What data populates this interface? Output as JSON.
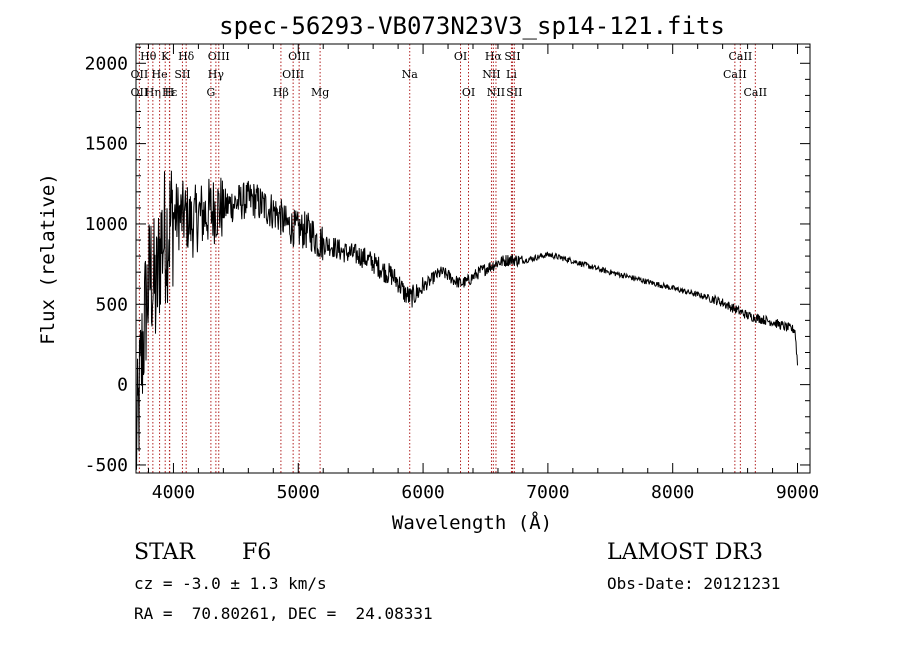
{
  "chart_data": {
    "type": "line",
    "title": "spec-56293-VB073N23V3_sp14-121.fits",
    "xlabel": "Wavelength (Å)",
    "ylabel": "Flux (relative)",
    "xlim": [
      3700,
      9100
    ],
    "ylim": [
      -550,
      2120
    ],
    "xticks": [
      4000,
      5000,
      6000,
      7000,
      8000,
      9000
    ],
    "yticks": [
      -500,
      0,
      500,
      1000,
      1500,
      2000
    ],
    "x_tick_labels": [
      "4000",
      "5000",
      "6000",
      "7000",
      "8000",
      "9000"
    ],
    "y_tick_labels": [
      "-500",
      "0",
      "500",
      "1000",
      "1500",
      "2000"
    ],
    "series": [
      {
        "name": "spectrum",
        "x": [
          3700,
          3740,
          3780,
          3820,
          3860,
          3900,
          3950,
          4000,
          4050,
          4100,
          4150,
          4200,
          4250,
          4300,
          4350,
          4400,
          4450,
          4500,
          4550,
          4600,
          4650,
          4700,
          4750,
          4800,
          4850,
          4900,
          4950,
          5000,
          5050,
          5100,
          5150,
          5200,
          5250,
          5300,
          5350,
          5400,
          5450,
          5500,
          5550,
          5600,
          5650,
          5700,
          5750,
          5800,
          5850,
          5900,
          5950,
          6000,
          6050,
          6100,
          6150,
          6200,
          6250,
          6300,
          6350,
          6400,
          6450,
          6500,
          6550,
          6600,
          6650,
          6700,
          6750,
          6800,
          6850,
          6900,
          6950,
          7000,
          7050,
          7100,
          7150,
          7200,
          7300,
          7400,
          7500,
          7600,
          7700,
          7800,
          7900,
          8000,
          8100,
          8200,
          8300,
          8400,
          8500,
          8600,
          8700,
          8800,
          8900,
          8980,
          9000
        ],
        "y": [
          -450,
          100,
          500,
          700,
          550,
          900,
          950,
          1050,
          1050,
          1050,
          1000,
          1050,
          1060,
          1080,
          1100,
          1100,
          1120,
          1130,
          1140,
          1150,
          1150,
          1120,
          1100,
          1080,
          1050,
          1000,
          980,
          960,
          960,
          950,
          900,
          880,
          870,
          850,
          830,
          820,
          810,
          800,
          780,
          760,
          730,
          700,
          680,
          640,
          570,
          540,
          570,
          610,
          640,
          680,
          700,
          680,
          650,
          630,
          640,
          670,
          700,
          720,
          740,
          760,
          770,
          780,
          775,
          770,
          780,
          790,
          800,
          810,
          800,
          790,
          780,
          770,
          745,
          720,
          700,
          680,
          660,
          640,
          620,
          600,
          580,
          560,
          540,
          510,
          470,
          430,
          410,
          390,
          360,
          340,
          130
        ]
      }
    ],
    "lines": [
      {
        "label": "Hθ",
        "x": 3798,
        "row": 0
      },
      {
        "label": "OII",
        "x": 3727,
        "row": 1
      },
      {
        "label": "OII",
        "x": 3727,
        "row": 2
      },
      {
        "label": "Hε",
        "x": 3970,
        "row": 2
      },
      {
        "label": "Hη",
        "x": 3835,
        "row": 2
      },
      {
        "label": "He",
        "x": 3889,
        "row": 1
      },
      {
        "label": "K",
        "x": 3934,
        "row": 0
      },
      {
        "label": "H",
        "x": 3968,
        "row": 2
      },
      {
        "label": "SII",
        "x": 4072,
        "row": 1
      },
      {
        "label": "Hδ",
        "x": 4102,
        "row": 0
      },
      {
        "label": "OIII",
        "x": 4363,
        "row": 0
      },
      {
        "label": "Hγ",
        "x": 4340,
        "row": 1
      },
      {
        "label": "G",
        "x": 4300,
        "row": 2
      },
      {
        "label": "OIII",
        "x": 5007,
        "row": 0
      },
      {
        "label": "OIII",
        "x": 4959,
        "row": 1
      },
      {
        "label": "Hβ",
        "x": 4861,
        "row": 2
      },
      {
        "label": "Mg",
        "x": 5175,
        "row": 2
      },
      {
        "label": "Na",
        "x": 5893,
        "row": 1
      },
      {
        "label": "OI",
        "x": 6300,
        "row": 0
      },
      {
        "label": "OI",
        "x": 6364,
        "row": 2
      },
      {
        "label": "Hα",
        "x": 6563,
        "row": 0
      },
      {
        "label": "SII",
        "x": 6716,
        "row": 0
      },
      {
        "label": "NII",
        "x": 6548,
        "row": 1
      },
      {
        "label": "Li",
        "x": 6708,
        "row": 1
      },
      {
        "label": "NII",
        "x": 6584,
        "row": 2
      },
      {
        "label": "SII",
        "x": 6731,
        "row": 2
      },
      {
        "label": "CaII",
        "x": 8542,
        "row": 0
      },
      {
        "label": "CaII",
        "x": 8498,
        "row": 1
      },
      {
        "label": "CaII",
        "x": 8662,
        "row": 2
      }
    ]
  },
  "info": {
    "class": "STAR",
    "subclass": "F6",
    "survey": "LAMOST DR3",
    "cz": "cz = -3.0 ± 1.3 km/s",
    "obs_date": "Obs-Date: 20121231",
    "radec": "RA =  70.80261, DEC =  24.08331"
  },
  "colors": {
    "axis": "#000000",
    "spectrum": "#000000",
    "line_marker": "#b22222"
  }
}
